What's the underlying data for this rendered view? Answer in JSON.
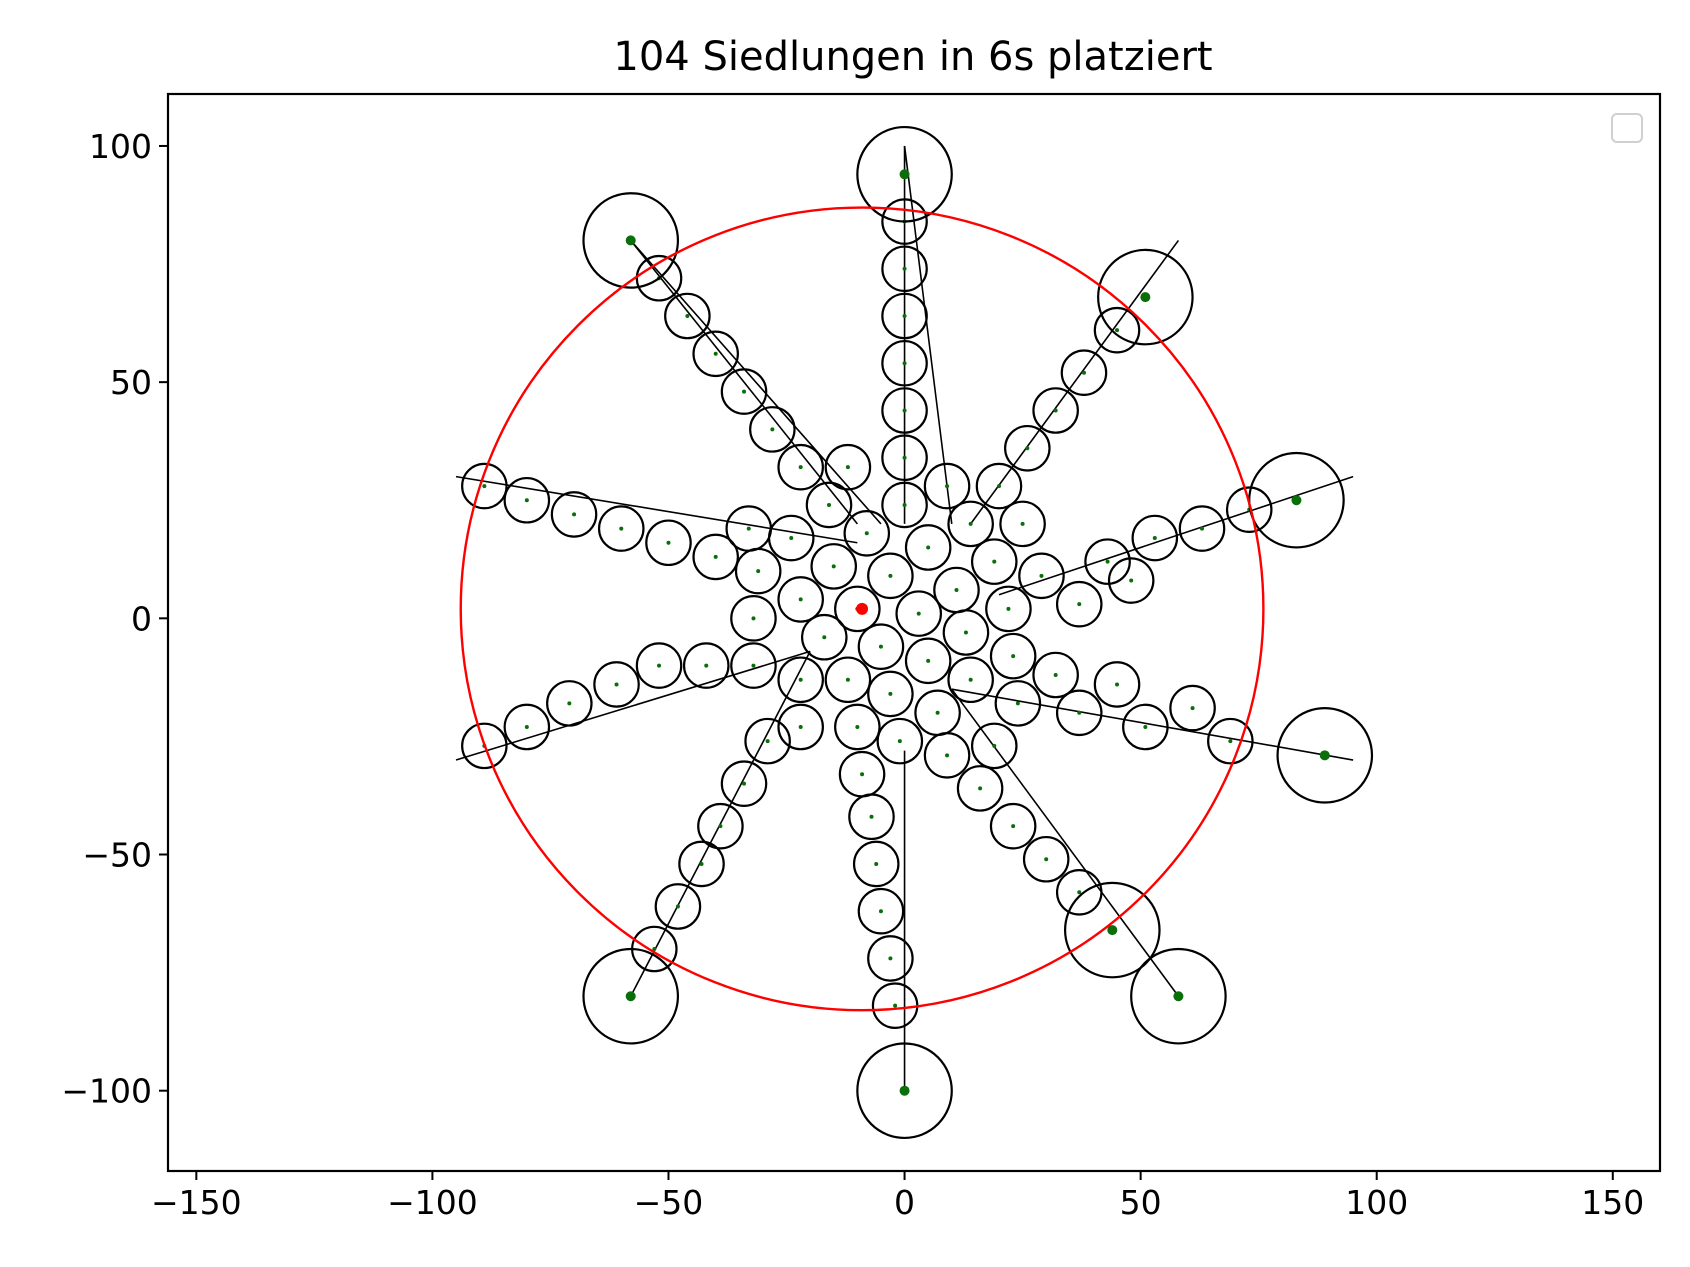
{
  "chart_data": {
    "type": "scatter",
    "title": "104 Siedlungen in 6s platziert",
    "xlim": [
      -156,
      160
    ],
    "ylim": [
      -117,
      111
    ],
    "x_ticks": [
      -150,
      -100,
      -50,
      0,
      50,
      100,
      150
    ],
    "y_ticks": [
      -100,
      -50,
      0,
      50,
      100
    ],
    "legend": {
      "placement": "top-right",
      "entries": []
    },
    "grid": false,
    "colors": {
      "settlement_ring": "#000000",
      "settlement_point": "#0a6e0a",
      "boundary": "#ff0000",
      "center": "#ff0000"
    },
    "boundary_circle": {
      "cx": -9,
      "cy": 2,
      "r": 85
    },
    "center_point": {
      "x": -9,
      "y": 2
    },
    "arms": [
      {
        "start": [
          0,
          100
        ],
        "end": [
          10,
          20
        ]
      },
      {
        "start": [
          58,
          80
        ],
        "end": [
          14,
          20
        ]
      },
      {
        "start": [
          95,
          30
        ],
        "end": [
          20,
          5
        ]
      },
      {
        "start": [
          95,
          -30
        ],
        "end": [
          10,
          -15
        ]
      },
      {
        "start": [
          58,
          -80
        ],
        "end": [
          10,
          -15
        ]
      },
      {
        "start": [
          0,
          -100
        ],
        "end": [
          0,
          -28
        ]
      },
      {
        "start": [
          -58,
          -80
        ],
        "end": [
          -20,
          -7
        ]
      },
      {
        "start": [
          -95,
          -30
        ],
        "end": [
          -20,
          -7
        ]
      },
      {
        "start": [
          -95,
          30
        ],
        "end": [
          -10,
          16
        ]
      },
      {
        "start": [
          -58,
          80
        ],
        "end": [
          -10,
          20
        ]
      },
      {
        "start": [
          -58,
          80
        ],
        "end": [
          -5,
          20
        ]
      },
      {
        "start": [
          0,
          100
        ],
        "end": [
          0,
          20
        ]
      }
    ],
    "large_settlements": [
      {
        "x": 0,
        "y": 94,
        "r": 10
      },
      {
        "x": 51,
        "y": 68,
        "r": 10
      },
      {
        "x": 83,
        "y": 25,
        "r": 10
      },
      {
        "x": 89,
        "y": -29,
        "r": 10
      },
      {
        "x": 58,
        "y": -80,
        "r": 10
      },
      {
        "x": 44,
        "y": -66,
        "r": 10
      },
      {
        "x": 0,
        "y": -100,
        "r": 10
      },
      {
        "x": -58,
        "y": -80,
        "r": 10
      },
      {
        "x": -58,
        "y": 80,
        "r": 10
      }
    ],
    "small_settlements": [
      {
        "x": 0,
        "y": 84
      },
      {
        "x": 0,
        "y": 74
      },
      {
        "x": 0,
        "y": 64
      },
      {
        "x": 0,
        "y": 54
      },
      {
        "x": 0,
        "y": 44
      },
      {
        "x": 0,
        "y": 34
      },
      {
        "x": 0,
        "y": 24
      },
      {
        "x": 9,
        "y": 28
      },
      {
        "x": 45,
        "y": 61
      },
      {
        "x": 38,
        "y": 52
      },
      {
        "x": 32,
        "y": 44
      },
      {
        "x": 26,
        "y": 36
      },
      {
        "x": 20,
        "y": 28
      },
      {
        "x": 14,
        "y": 20
      },
      {
        "x": 25,
        "y": 20
      },
      {
        "x": 19,
        "y": 12
      },
      {
        "x": 73,
        "y": 23
      },
      {
        "x": 63,
        "y": 19
      },
      {
        "x": 53,
        "y": 17
      },
      {
        "x": 43,
        "y": 12
      },
      {
        "x": 48,
        "y": 8
      },
      {
        "x": 29,
        "y": 9
      },
      {
        "x": 37,
        "y": 3
      },
      {
        "x": 22,
        "y": 2
      },
      {
        "x": 69,
        "y": -26
      },
      {
        "x": 61,
        "y": -19
      },
      {
        "x": 51,
        "y": -23
      },
      {
        "x": 45,
        "y": -14
      },
      {
        "x": 37,
        "y": -20
      },
      {
        "x": 32,
        "y": -12
      },
      {
        "x": 24,
        "y": -18
      },
      {
        "x": 23,
        "y": -8
      },
      {
        "x": 37,
        "y": -58
      },
      {
        "x": 30,
        "y": -51
      },
      {
        "x": 23,
        "y": -44
      },
      {
        "x": 16,
        "y": -36
      },
      {
        "x": 9,
        "y": -29
      },
      {
        "x": 19,
        "y": -27
      },
      {
        "x": 14,
        "y": -13
      },
      {
        "x": 7,
        "y": -20
      },
      {
        "x": -2,
        "y": -82
      },
      {
        "x": -3,
        "y": -72
      },
      {
        "x": -5,
        "y": -62
      },
      {
        "x": -6,
        "y": -52
      },
      {
        "x": -7,
        "y": -42
      },
      {
        "x": -9,
        "y": -33
      },
      {
        "x": -10,
        "y": -23
      },
      {
        "x": -1,
        "y": -26
      },
      {
        "x": -53,
        "y": -70
      },
      {
        "x": -48,
        "y": -61
      },
      {
        "x": -43,
        "y": -52
      },
      {
        "x": -39,
        "y": -44
      },
      {
        "x": -34,
        "y": -35
      },
      {
        "x": -29,
        "y": -26
      },
      {
        "x": -22,
        "y": -23
      },
      {
        "x": -22,
        "y": -13
      },
      {
        "x": -89,
        "y": -27
      },
      {
        "x": -80,
        "y": -23
      },
      {
        "x": -71,
        "y": -18
      },
      {
        "x": -61,
        "y": -14
      },
      {
        "x": -52,
        "y": -10
      },
      {
        "x": -42,
        "y": -10
      },
      {
        "x": -32,
        "y": -10
      },
      {
        "x": -32,
        "y": 0
      },
      {
        "x": -89,
        "y": 28
      },
      {
        "x": -80,
        "y": 25
      },
      {
        "x": -70,
        "y": 22
      },
      {
        "x": -60,
        "y": 19
      },
      {
        "x": -50,
        "y": 16
      },
      {
        "x": -40,
        "y": 13
      },
      {
        "x": -33,
        "y": 19
      },
      {
        "x": -31,
        "y": 10
      },
      {
        "x": -52,
        "y": 72
      },
      {
        "x": -46,
        "y": 64
      },
      {
        "x": -40,
        "y": 56
      },
      {
        "x": -34,
        "y": 48
      },
      {
        "x": -28,
        "y": 40
      },
      {
        "x": -22,
        "y": 32
      },
      {
        "x": -16,
        "y": 24
      },
      {
        "x": -12,
        "y": 32
      },
      {
        "x": -24,
        "y": 17
      },
      {
        "x": -15,
        "y": 11
      },
      {
        "x": -8,
        "y": 18
      },
      {
        "x": -3,
        "y": 9
      },
      {
        "x": 5,
        "y": 15
      },
      {
        "x": 11,
        "y": 6
      },
      {
        "x": -22,
        "y": 4
      },
      {
        "x": -17,
        "y": -4
      },
      {
        "x": -5,
        "y": -6
      },
      {
        "x": 3,
        "y": 1
      },
      {
        "x": 13,
        "y": -3
      },
      {
        "x": 5,
        "y": -9
      },
      {
        "x": -12,
        "y": -13
      },
      {
        "x": -3,
        "y": -16
      },
      {
        "x": -10,
        "y": 2
      }
    ]
  }
}
